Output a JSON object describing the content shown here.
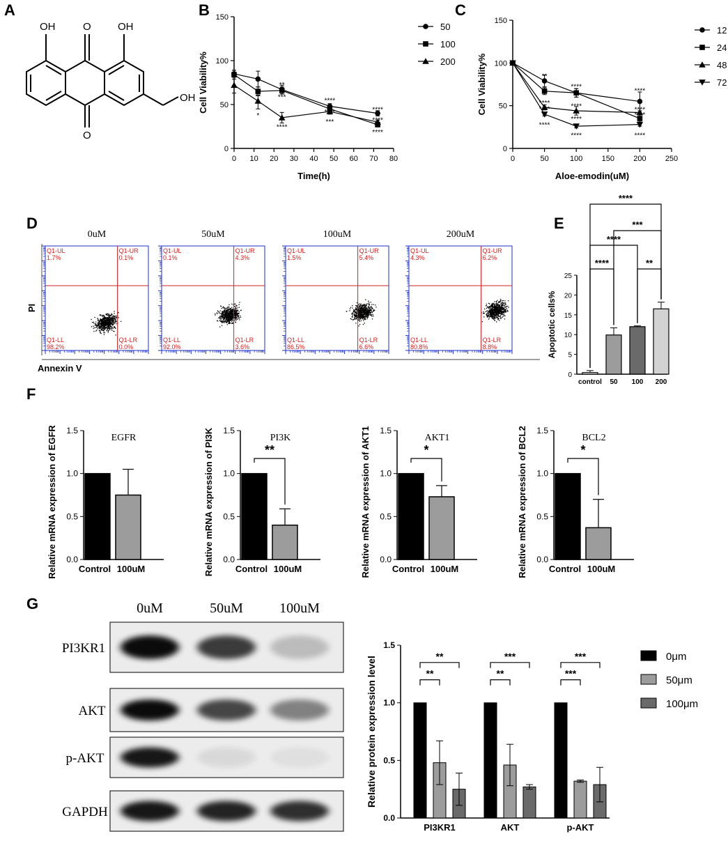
{
  "panels": {
    "A": "A",
    "B": "B",
    "C": "C",
    "D": "D",
    "E": "E",
    "F": "F",
    "G": "G"
  },
  "structure": {
    "labels": [
      "OH",
      "O",
      "OH",
      "O",
      "OH"
    ]
  },
  "colors": {
    "black": "#000000",
    "dark_gray": "#6a6a6a",
    "mid_gray": "#9c9c9c",
    "light_gray": "#d2d2d2",
    "flow_gate": "#d21f1f",
    "flow_axis": "#1b2fc8"
  },
  "chart_data": [
    {
      "id": "B",
      "type": "line",
      "xlabel": "Time(h)",
      "ylabel": "Cell Viability%",
      "xlim": [
        0,
        80
      ],
      "ylim": [
        0,
        150
      ],
      "xticks": [
        0,
        10,
        20,
        30,
        40,
        50,
        60,
        70,
        80
      ],
      "yticks": [
        0,
        50,
        100,
        150
      ],
      "series": [
        {
          "name": "50",
          "marker": "circle",
          "x": [
            0,
            12,
            24,
            48,
            72
          ],
          "y": [
            85,
            79,
            67,
            48,
            40
          ],
          "err": [
            4,
            9,
            5,
            3,
            3
          ]
        },
        {
          "name": "100",
          "marker": "square",
          "x": [
            0,
            12,
            24,
            48,
            72
          ],
          "y": [
            84,
            65,
            66,
            45,
            27
          ],
          "err": [
            5,
            5,
            4,
            3,
            2
          ]
        },
        {
          "name": "200",
          "marker": "triangle-up",
          "x": [
            0,
            12,
            24,
            48,
            72
          ],
          "y": [
            72,
            54,
            35,
            42,
            30
          ],
          "err": [
            9,
            9,
            6,
            3,
            2
          ]
        }
      ],
      "annotations": [
        {
          "x": 12,
          "y": 60,
          "text": "**"
        },
        {
          "x": 12,
          "y": 38,
          "text": "*"
        },
        {
          "x": 24,
          "y": 73,
          "text": "**"
        },
        {
          "x": 24,
          "y": 59,
          "text": "***"
        },
        {
          "x": 24,
          "y": 25,
          "text": "****"
        },
        {
          "x": 48,
          "y": 55,
          "text": "****"
        },
        {
          "x": 48,
          "y": 42,
          "text": "****"
        },
        {
          "x": 48,
          "y": 31,
          "text": "***"
        },
        {
          "x": 72,
          "y": 45,
          "text": "****"
        },
        {
          "x": 72,
          "y": 33,
          "text": "****"
        },
        {
          "x": 72,
          "y": 19,
          "text": "****"
        }
      ]
    },
    {
      "id": "C",
      "type": "line",
      "xlabel": "Aloe-emodin(uM)",
      "ylabel": "Cell Viability%",
      "xlim": [
        0,
        250
      ],
      "ylim": [
        0,
        150
      ],
      "xticks": [
        0,
        50,
        100,
        150,
        200,
        250
      ],
      "yticks": [
        0,
        50,
        100,
        150
      ],
      "series": [
        {
          "name": "12h",
          "marker": "circle",
          "x": [
            0,
            50,
            100,
            200
          ],
          "y": [
            100,
            79,
            65,
            55
          ],
          "err": [
            1,
            7,
            5,
            11
          ]
        },
        {
          "name": "24h",
          "marker": "square",
          "x": [
            0,
            50,
            100,
            200
          ],
          "y": [
            100,
            67,
            65,
            35
          ],
          "err": [
            1,
            4,
            5,
            4
          ]
        },
        {
          "name": "48h",
          "marker": "triangle-up",
          "x": [
            0,
            50,
            100,
            200
          ],
          "y": [
            100,
            48,
            44,
            42
          ],
          "err": [
            1,
            3,
            5,
            2
          ]
        },
        {
          "name": "72h",
          "marker": "triangle-down",
          "x": [
            0,
            50,
            100,
            200
          ],
          "y": [
            100,
            40,
            26,
            28
          ],
          "err": [
            1,
            2,
            2,
            2
          ]
        }
      ],
      "annotations": [
        {
          "x": 50,
          "y": 85,
          "text": "**"
        },
        {
          "x": 50,
          "y": 54,
          "text": "****"
        },
        {
          "x": 50,
          "y": 47,
          "text": "****"
        },
        {
          "x": 50,
          "y": 28,
          "text": "****"
        },
        {
          "x": 100,
          "y": 73,
          "text": "****"
        },
        {
          "x": 100,
          "y": 50,
          "text": "****"
        },
        {
          "x": 100,
          "y": 35,
          "text": "****"
        },
        {
          "x": 100,
          "y": 16,
          "text": "****"
        },
        {
          "x": 200,
          "y": 68,
          "text": "****"
        },
        {
          "x": 200,
          "y": 46,
          "text": "****"
        },
        {
          "x": 200,
          "y": 40,
          "text": "****"
        },
        {
          "x": 200,
          "y": 16,
          "text": "****"
        }
      ]
    },
    {
      "id": "D",
      "type": "scatter",
      "xlabel": "Annexin V",
      "ylabel": "PI",
      "plots": [
        {
          "title": "0uM",
          "UL": "1.7%",
          "UR": "0.1%",
          "LL": "98.2%",
          "LR": "0.0%",
          "cx": 4.1,
          "cy": 1.9
        },
        {
          "title": "50uM",
          "UL": "0.1%",
          "UR": "4.3%",
          "LL": "92.0%",
          "LR": "3.6%",
          "cx": 4.6,
          "cy": 2.4
        },
        {
          "title": "100uM",
          "UL": "1.5%",
          "UR": "5.4%",
          "LL": "86.5%",
          "LR": "6.6%",
          "cx": 5.2,
          "cy": 2.6
        },
        {
          "title": "200uM",
          "UL": "4.3%",
          "UR": "6.2%",
          "LL": "80.8%",
          "LR": "8.8%",
          "cx": 5.9,
          "cy": 2.7
        }
      ],
      "quadrant_names": {
        "UL": "Q1-UL",
        "UR": "Q1-UR",
        "LL": "Q1-LL",
        "LR": "Q1-LR"
      }
    },
    {
      "id": "E",
      "type": "bar",
      "ylabel": "Apoptotic cells%",
      "categories": [
        "control",
        "50",
        "100",
        "200"
      ],
      "values": [
        0.4,
        9.9,
        12.0,
        16.5
      ],
      "err": [
        0.5,
        1.8,
        0.2,
        1.7
      ],
      "ylim": [
        0,
        25
      ],
      "yticks": [
        0,
        5,
        10,
        15,
        20,
        25
      ],
      "brackets": [
        {
          "from": 0,
          "to": 3,
          "text": "****"
        },
        {
          "from": 1,
          "to": 3,
          "text": "***"
        },
        {
          "from": 0,
          "to": 2,
          "text": "****"
        },
        {
          "from": 0,
          "to": 1,
          "text": "****"
        },
        {
          "from": 2,
          "to": 3,
          "text": "**"
        }
      ]
    },
    {
      "id": "F1",
      "type": "bar",
      "title": "EGFR",
      "ylabel": "Relative mRNA expression of EGFR",
      "categories": [
        "Control",
        "100uM"
      ],
      "values": [
        1.0,
        0.75
      ],
      "err": [
        0,
        0.3
      ],
      "ylim": [
        0,
        1.5
      ],
      "yticks": [
        0.0,
        0.5,
        1.0,
        1.5
      ],
      "sig": ""
    },
    {
      "id": "F2",
      "type": "bar",
      "title": "PI3K",
      "ylabel": "Relative mRNA expression of PI3K",
      "categories": [
        "Control",
        "100uM"
      ],
      "values": [
        1.0,
        0.4
      ],
      "err": [
        0,
        0.19
      ],
      "ylim": [
        0,
        1.5
      ],
      "yticks": [
        0.0,
        0.5,
        1.0,
        1.5
      ],
      "sig": "**"
    },
    {
      "id": "F3",
      "type": "bar",
      "title": "AKT1",
      "ylabel": "Relative mRNA expression of AKT1",
      "categories": [
        "Control",
        "100uM"
      ],
      "values": [
        1.0,
        0.73
      ],
      "err": [
        0,
        0.13
      ],
      "ylim": [
        0,
        1.5
      ],
      "yticks": [
        0.0,
        0.5,
        1.0,
        1.5
      ],
      "sig": "*"
    },
    {
      "id": "F4",
      "type": "bar",
      "title": "BCL2",
      "ylabel": "Relative mRNA expression of BCL2",
      "categories": [
        "Control",
        "100uM"
      ],
      "values": [
        1.0,
        0.37
      ],
      "err": [
        0,
        0.33
      ],
      "ylim": [
        0,
        1.5
      ],
      "yticks": [
        0.0,
        0.5,
        1.0,
        1.5
      ],
      "sig": "*"
    },
    {
      "id": "G",
      "type": "bar",
      "ylabel": "Relative protein expression level",
      "categories": [
        "PI3KR1",
        "AKT",
        "p-AKT"
      ],
      "ylim": [
        0,
        1.5
      ],
      "yticks": [
        0.0,
        0.5,
        1.0,
        1.5
      ],
      "series": [
        {
          "name": "0μm",
          "values": [
            1.0,
            1.0,
            1.0
          ],
          "err": [
            0,
            0,
            0
          ]
        },
        {
          "name": "50μm",
          "values": [
            0.48,
            0.46,
            0.32
          ],
          "err": [
            0.19,
            0.18,
            0.01
          ]
        },
        {
          "name": "100μm",
          "values": [
            0.25,
            0.27,
            0.29
          ],
          "err": [
            0.14,
            0.02,
            0.15
          ]
        }
      ],
      "sig_long": [
        "**",
        "***",
        "***"
      ],
      "sig_short": [
        "**",
        "**",
        "***"
      ]
    }
  ],
  "western": {
    "lanes": [
      "0uM",
      "50uM",
      "100uM"
    ],
    "rows": [
      {
        "label": "PI3KR1",
        "intensity": [
          0.95,
          0.75,
          0.2
        ]
      },
      {
        "label": "AKT",
        "intensity": [
          0.95,
          0.7,
          0.45
        ]
      },
      {
        "label": "p-AKT",
        "intensity": [
          0.9,
          0.08,
          0.05
        ]
      },
      {
        "label": "GAPDH",
        "intensity": [
          0.9,
          0.85,
          0.8
        ]
      }
    ]
  }
}
